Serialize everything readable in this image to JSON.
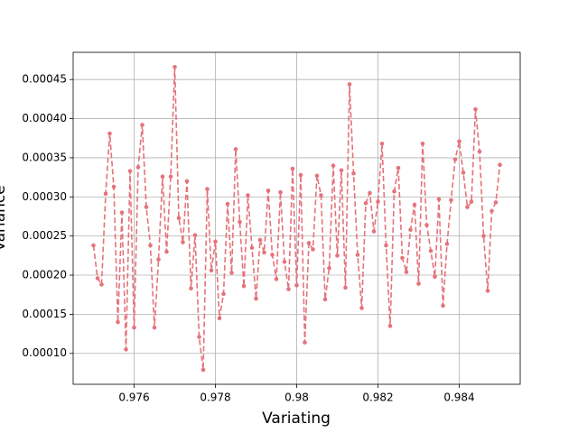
{
  "chart_data": {
    "type": "line",
    "x_label": "Variating",
    "y_label": "Variance",
    "color": "#e5737b",
    "line_style": "dashed",
    "markers": true,
    "grid": true,
    "x": [
      0.975,
      0.9751,
      0.9752,
      0.9753,
      0.9754,
      0.9755,
      0.9756,
      0.9757,
      0.9758,
      0.9759,
      0.976,
      0.9761,
      0.9762,
      0.9763,
      0.9764,
      0.9765,
      0.9766,
      0.9767,
      0.9768,
      0.9769,
      0.977,
      0.9771,
      0.9772,
      0.9773,
      0.9774,
      0.9775,
      0.9776,
      0.9777,
      0.9778,
      0.9779,
      0.978,
      0.9781,
      0.9782,
      0.9783,
      0.9784,
      0.9785,
      0.9786,
      0.9787,
      0.9788,
      0.9789,
      0.979,
      0.9791,
      0.9792,
      0.9793,
      0.9794,
      0.9795,
      0.9796,
      0.9797,
      0.9798,
      0.9799,
      0.98,
      0.9801,
      0.9802,
      0.9803,
      0.9804,
      0.9805,
      0.9806,
      0.9807,
      0.9808,
      0.9809,
      0.981,
      0.9811,
      0.9812,
      0.9813,
      0.9814,
      0.9815,
      0.9816,
      0.9817,
      0.9818,
      0.9819,
      0.982,
      0.9821,
      0.9822,
      0.9823,
      0.9824,
      0.9825,
      0.9826,
      0.9827,
      0.9828,
      0.9829,
      0.983,
      0.9831,
      0.9832,
      0.9833,
      0.9834,
      0.9835,
      0.9836,
      0.9837,
      0.9838,
      0.9839,
      0.984,
      0.9841,
      0.9842,
      0.9843,
      0.9844,
      0.9845,
      0.9846,
      0.9847,
      0.9848,
      0.9849,
      0.985
    ],
    "values": [
      0.000238,
      0.000196,
      0.000188,
      0.000304,
      0.000381,
      0.000313,
      0.00014,
      0.00028,
      0.000105,
      0.000333,
      0.000133,
      0.000338,
      0.000392,
      0.000287,
      0.000238,
      0.000133,
      0.00022,
      0.000326,
      0.00023,
      0.000326,
      0.000466,
      0.000273,
      0.000242,
      0.00032,
      0.000183,
      0.000251,
      0.000121,
      7.9e-05,
      0.00031,
      0.000206,
      0.000243,
      0.000145,
      0.000176,
      0.000291,
      0.000203,
      0.000361,
      0.000268,
      0.000186,
      0.000302,
      0.000235,
      0.00017,
      0.000245,
      0.000229,
      0.000308,
      0.000226,
      0.000195,
      0.000306,
      0.000217,
      0.000182,
      0.000336,
      0.000187,
      0.000328,
      0.000114,
      0.000241,
      0.000233,
      0.000327,
      0.000302,
      0.000169,
      0.000209,
      0.00034,
      0.000225,
      0.000334,
      0.000184,
      0.000444,
      0.00033,
      0.000226,
      0.000158,
      0.000292,
      0.000305,
      0.000256,
      0.000294,
      0.000368,
      0.000238,
      0.000135,
      0.000307,
      0.000337,
      0.000222,
      0.000204,
      0.000258,
      0.00029,
      0.000189,
      0.000368,
      0.000264,
      0.000231,
      0.000198,
      0.000297,
      0.000161,
      0.00024,
      0.000296,
      0.000348,
      0.000371,
      0.000331,
      0.000287,
      0.000294,
      0.000412,
      0.000358,
      0.00025,
      0.00018,
      0.000282,
      0.000293,
      0.000341
    ],
    "xlim": [
      0.9745,
      0.9855
    ],
    "ylim": [
      6.05e-05,
      0.0004848
    ],
    "xticks": [
      0.976,
      0.978,
      0.98,
      0.982,
      0.984
    ],
    "yticks": [
      {
        "value": 0.0001,
        "label": "0.00010"
      },
      0.00015,
      {
        "value": 0.0002,
        "label": "0.00020"
      },
      0.00025,
      {
        "value": 0.0003,
        "label": "0.00030"
      },
      0.00035,
      {
        "value": 0.0004,
        "label": "0.00040"
      },
      0.00045
    ]
  }
}
